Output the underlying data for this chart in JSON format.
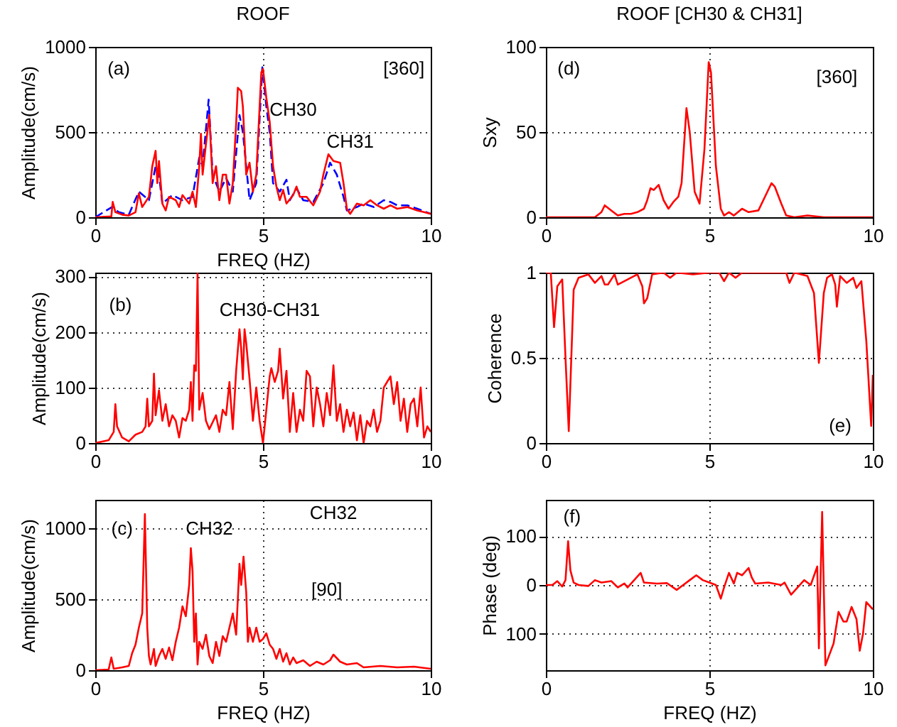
{
  "chart_data": [
    {
      "type": "line",
      "title": "ROOF",
      "xlabel": "FREQ (HZ)",
      "ylabel": "Amplitude(cm/s)",
      "xlim": [
        0,
        10
      ],
      "ylim": [
        0,
        1000
      ],
      "xticks": [
        0,
        5,
        10
      ],
      "yticks": [
        0,
        500,
        1000
      ],
      "grid": true,
      "series": [
        {
          "color": "#0000ff",
          "line_style": "dashed",
          "x": [
            0,
            0.5,
            0.7,
            1.0,
            1.3,
            1.6,
            1.8,
            1.9,
            2.0,
            2.3,
            2.6,
            2.9,
            3.1,
            3.2,
            3.38,
            3.5,
            3.7,
            3.9,
            4.1,
            4.3,
            4.4,
            4.6,
            4.8,
            4.98,
            5.1,
            5.2,
            5.3,
            5.5,
            5.7,
            5.8,
            6.0,
            6.2,
            6.5,
            6.8,
            7.0,
            7.2,
            7.4,
            7.5,
            7.8,
            8.0,
            8.3,
            8.6,
            8.8,
            9.0,
            9.3,
            9.6,
            10
          ],
          "values": [
            0,
            60,
            30,
            15,
            150,
            100,
            300,
            250,
            80,
            130,
            100,
            120,
            350,
            300,
            690,
            250,
            150,
            230,
            150,
            600,
            500,
            100,
            200,
            880,
            650,
            500,
            200,
            150,
            220,
            100,
            170,
            100,
            90,
            200,
            320,
            250,
            120,
            40,
            60,
            80,
            60,
            100,
            90,
            70,
            70,
            50,
            20
          ]
        },
        {
          "color": "#ff0000",
          "line_style": "solid",
          "x": [
            0,
            0.48,
            0.52,
            0.6,
            0.8,
            1.0,
            1.2,
            1.3,
            1.4,
            1.6,
            1.7,
            1.8,
            1.85,
            1.9,
            2.0,
            2.1,
            2.2,
            2.4,
            2.5,
            2.6,
            2.8,
            2.9,
            3.0,
            3.1,
            3.15,
            3.2,
            3.3,
            3.4,
            3.5,
            3.6,
            3.7,
            3.8,
            3.9,
            4.0,
            4.1,
            4.2,
            4.25,
            4.35,
            4.4,
            4.5,
            4.6,
            4.7,
            4.8,
            4.95,
            5.0,
            5.1,
            5.2,
            5.3,
            5.4,
            5.5,
            5.6,
            5.7,
            5.9,
            6.0,
            6.1,
            6.3,
            6.5,
            6.7,
            6.8,
            6.95,
            7.1,
            7.3,
            7.4,
            7.5,
            7.6,
            7.8,
            8.0,
            8.2,
            8.4,
            8.6,
            8.8,
            9.0,
            9.3,
            9.6,
            9.8,
            10
          ],
          "values": [
            0,
            5,
            90,
            30,
            15,
            10,
            30,
            140,
            60,
            120,
            300,
            390,
            200,
            330,
            80,
            40,
            120,
            100,
            60,
            130,
            80,
            150,
            60,
            300,
            490,
            250,
            430,
            600,
            200,
            300,
            100,
            250,
            250,
            80,
            200,
            550,
            760,
            740,
            650,
            250,
            320,
            150,
            250,
            850,
            870,
            700,
            560,
            300,
            180,
            100,
            160,
            80,
            130,
            180,
            120,
            120,
            70,
            150,
            250,
            370,
            330,
            320,
            200,
            50,
            20,
            80,
            70,
            100,
            70,
            50,
            70,
            50,
            60,
            40,
            30,
            20
          ]
        }
      ],
      "annotations": [
        "(a)",
        "[360]",
        "CH30",
        "CH31"
      ]
    },
    {
      "type": "line",
      "title": "ROOF [CH30 & CH31]",
      "ylabel": "Sxy",
      "xlim": [
        0,
        10
      ],
      "ylim": [
        0,
        100
      ],
      "xticks": [
        0,
        5,
        10
      ],
      "yticks": [
        0,
        50,
        100
      ],
      "grid": true,
      "series": [
        {
          "color": "#ff0000",
          "line_style": "solid",
          "x": [
            0,
            1.5,
            1.7,
            1.8,
            2.0,
            2.2,
            2.4,
            2.6,
            2.8,
            3.0,
            3.1,
            3.2,
            3.3,
            3.45,
            3.6,
            3.75,
            3.9,
            4.05,
            4.15,
            4.3,
            4.4,
            4.55,
            4.7,
            4.85,
            4.98,
            5.05,
            5.2,
            5.35,
            5.45,
            5.6,
            5.75,
            6.0,
            6.2,
            6.5,
            6.7,
            6.9,
            7.0,
            7.2,
            7.35,
            7.6,
            8.0,
            8.5,
            10
          ],
          "values": [
            0,
            0,
            3,
            7,
            4,
            1,
            2,
            2,
            3,
            5,
            10,
            17,
            16,
            19,
            10,
            5,
            9,
            12,
            20,
            64,
            50,
            15,
            8,
            40,
            91,
            85,
            30,
            5,
            1,
            3,
            1,
            5,
            3,
            4,
            12,
            20,
            18,
            8,
            1,
            0,
            1,
            0,
            0
          ]
        }
      ],
      "annotations": [
        "(d)",
        "[360]"
      ]
    },
    {
      "type": "line",
      "ylabel": "Amplitude(cm/s)",
      "xlim": [
        0,
        10
      ],
      "ylim": [
        0,
        307
      ],
      "xticks": [
        0,
        5,
        10
      ],
      "yticks": [
        0,
        100,
        200,
        300
      ],
      "grid": true,
      "series": [
        {
          "color": "#ff0000",
          "line_style": "solid",
          "x": [
            0,
            0.4,
            0.55,
            0.6,
            0.65,
            0.8,
            1.0,
            1.2,
            1.4,
            1.5,
            1.55,
            1.6,
            1.7,
            1.75,
            1.8,
            1.9,
            2.0,
            2.1,
            2.2,
            2.3,
            2.4,
            2.5,
            2.6,
            2.7,
            2.8,
            2.85,
            2.9,
            2.95,
            3.0,
            3.05,
            3.1,
            3.2,
            3.3,
            3.4,
            3.6,
            3.7,
            3.8,
            3.9,
            4.0,
            4.1,
            4.2,
            4.3,
            4.35,
            4.4,
            4.45,
            4.5,
            4.6,
            4.7,
            4.8,
            4.9,
            5.0,
            5.1,
            5.2,
            5.25,
            5.35,
            5.45,
            5.5,
            5.6,
            5.7,
            5.8,
            5.9,
            6.0,
            6.1,
            6.2,
            6.3,
            6.4,
            6.5,
            6.6,
            6.7,
            6.8,
            6.9,
            7.0,
            7.1,
            7.2,
            7.3,
            7.4,
            7.5,
            7.6,
            7.7,
            7.8,
            7.9,
            8.0,
            8.1,
            8.2,
            8.3,
            8.4,
            8.5,
            8.6,
            8.7,
            8.8,
            8.9,
            9.0,
            9.1,
            9.2,
            9.3,
            9.4,
            9.5,
            9.6,
            9.7,
            9.8,
            9.9,
            10
          ],
          "values": [
            0,
            5,
            20,
            70,
            30,
            10,
            3,
            15,
            20,
            30,
            80,
            30,
            40,
            125,
            50,
            95,
            40,
            70,
            30,
            50,
            40,
            10,
            45,
            40,
            60,
            110,
            40,
            140,
            130,
            305,
            60,
            90,
            40,
            25,
            50,
            20,
            60,
            50,
            110,
            25,
            130,
            205,
            170,
            115,
            205,
            180,
            115,
            40,
            100,
            40,
            0,
            60,
            120,
            135,
            110,
            130,
            170,
            80,
            130,
            20,
            90,
            20,
            60,
            40,
            130,
            120,
            30,
            100,
            70,
            30,
            90,
            50,
            140,
            40,
            70,
            20,
            60,
            30,
            55,
            5,
            50,
            0,
            40,
            30,
            60,
            20,
            40,
            100,
            110,
            120,
            70,
            110,
            40,
            80,
            20,
            70,
            80,
            30,
            100,
            10,
            30,
            20
          ]
        }
      ],
      "annotations": [
        "(b)",
        "CH30-CH31"
      ]
    },
    {
      "type": "line",
      "ylabel": "Coherence",
      "xlim": [
        0,
        10
      ],
      "ylim": [
        0,
        1
      ],
      "xticks": [
        0,
        5,
        10
      ],
      "yticks": [
        0,
        0.5,
        1
      ],
      "grid": true,
      "series": [
        {
          "color": "#ff0000",
          "line_style": "solid",
          "x": [
            0,
            0.15,
            0.25,
            0.35,
            0.5,
            0.6,
            0.7,
            0.85,
            1.0,
            1.3,
            1.5,
            1.7,
            1.8,
            1.9,
            2.0,
            2.1,
            2.2,
            2.5,
            2.8,
            2.95,
            3.0,
            3.1,
            3.25,
            3.6,
            3.8,
            4.0,
            4.5,
            5.0,
            5.3,
            5.45,
            5.6,
            5.8,
            6.0,
            6.5,
            7.0,
            7.35,
            7.45,
            7.6,
            8.0,
            8.2,
            8.35,
            8.5,
            8.6,
            8.75,
            8.85,
            8.9,
            9.0,
            9.2,
            9.4,
            9.5,
            9.65,
            9.8,
            9.95,
            10
          ],
          "values": [
            1,
            1,
            0.68,
            0.92,
            0.96,
            0.5,
            0.07,
            0.9,
            0.97,
            0.99,
            0.94,
            0.98,
            0.93,
            0.93,
            0.96,
            0.99,
            0.93,
            0.96,
            0.99,
            0.92,
            0.82,
            0.85,
            0.99,
            1,
            0.97,
            1,
            0.99,
            1,
            1,
            0.95,
            1,
            0.97,
            1,
            1,
            1,
            1,
            0.94,
            1,
            0.98,
            0.88,
            0.47,
            0.88,
            0.97,
            0.99,
            0.93,
            0.8,
            0.98,
            0.94,
            0.97,
            0.91,
            0.95,
            0.6,
            0.1,
            0.4
          ]
        }
      ],
      "annotations": [
        "(e)"
      ]
    },
    {
      "type": "line",
      "xlabel": "FREQ (HZ)",
      "ylabel": "Amplitude(cm/s)",
      "xlim": [
        0,
        10
      ],
      "ylim": [
        0,
        1200
      ],
      "xticks": [
        0,
        5,
        10
      ],
      "yticks": [
        0,
        500,
        1000
      ],
      "grid": true,
      "series": [
        {
          "color": "#ff0000",
          "line_style": "solid",
          "x": [
            0,
            0.4,
            0.48,
            0.55,
            0.8,
            1.0,
            1.1,
            1.2,
            1.3,
            1.4,
            1.48,
            1.55,
            1.6,
            1.65,
            1.75,
            1.8,
            1.9,
            2.0,
            2.1,
            2.2,
            2.3,
            2.4,
            2.5,
            2.6,
            2.7,
            2.8,
            2.85,
            2.9,
            2.95,
            3.0,
            3.05,
            3.1,
            3.2,
            3.3,
            3.4,
            3.5,
            3.6,
            3.7,
            3.8,
            3.9,
            4.0,
            4.1,
            4.2,
            4.3,
            4.35,
            4.42,
            4.5,
            4.55,
            4.6,
            4.7,
            4.8,
            4.9,
            5.0,
            5.1,
            5.2,
            5.3,
            5.4,
            5.5,
            5.6,
            5.7,
            5.8,
            5.9,
            6.0,
            6.2,
            6.4,
            6.6,
            6.8,
            7.0,
            7.1,
            7.3,
            7.5,
            7.8,
            8.0,
            8.5,
            9.0,
            9.5,
            10
          ],
          "values": [
            0,
            5,
            90,
            10,
            20,
            30,
            120,
            180,
            300,
            400,
            1100,
            300,
            100,
            40,
            150,
            30,
            100,
            150,
            80,
            160,
            70,
            200,
            300,
            450,
            380,
            600,
            860,
            700,
            200,
            400,
            40,
            200,
            150,
            250,
            100,
            50,
            200,
            100,
            240,
            200,
            300,
            400,
            250,
            750,
            600,
            800,
            550,
            200,
            300,
            200,
            300,
            200,
            220,
            260,
            180,
            150,
            80,
            150,
            60,
            120,
            40,
            90,
            50,
            70,
            30,
            60,
            40,
            70,
            110,
            60,
            40,
            50,
            20,
            30,
            20,
            25,
            10
          ]
        }
      ],
      "annotations": [
        "(c)",
        "CH32",
        "CH32",
        "[90]"
      ]
    },
    {
      "type": "line",
      "xlabel": "FREQ (HZ)",
      "ylabel": "Phase (deg)",
      "xlim": [
        0,
        10
      ],
      "ylim": [
        -175,
        175
      ],
      "xticks": [
        0,
        5,
        10
      ],
      "yticks": [
        {
          "value": -100,
          "label": "100"
        },
        0,
        100
      ],
      "grid": true,
      "series": [
        {
          "color": "#ff0000",
          "line_style": "solid",
          "x": [
            0,
            0.2,
            0.35,
            0.5,
            0.6,
            0.68,
            0.75,
            0.85,
            1.0,
            1.3,
            1.5,
            1.7,
            2.0,
            2.2,
            2.4,
            2.5,
            2.7,
            2.9,
            3.0,
            3.4,
            3.7,
            4.0,
            4.2,
            4.4,
            4.6,
            4.8,
            5.0,
            5.2,
            5.35,
            5.45,
            5.6,
            5.75,
            5.85,
            6.0,
            6.2,
            6.3,
            6.4,
            6.8,
            7.2,
            7.3,
            7.5,
            7.7,
            7.9,
            8.1,
            8.3,
            8.35,
            8.45,
            8.55,
            8.8,
            8.95,
            9.1,
            9.2,
            9.35,
            9.5,
            9.6,
            9.7,
            9.8,
            10
          ],
          "values": [
            0,
            0,
            8,
            -3,
            10,
            90,
            30,
            5,
            0,
            -2,
            10,
            5,
            8,
            -5,
            3,
            -5,
            10,
            25,
            5,
            3,
            4,
            -10,
            0,
            10,
            20,
            10,
            5,
            0,
            -28,
            -5,
            25,
            3,
            25,
            20,
            35,
            15,
            3,
            5,
            0,
            5,
            -20,
            -5,
            10,
            0,
            38,
            -130,
            150,
            -165,
            -120,
            -55,
            -75,
            -75,
            -45,
            -70,
            -135,
            -100,
            -35,
            -50
          ]
        }
      ],
      "annotations": [
        "(f)"
      ]
    }
  ]
}
